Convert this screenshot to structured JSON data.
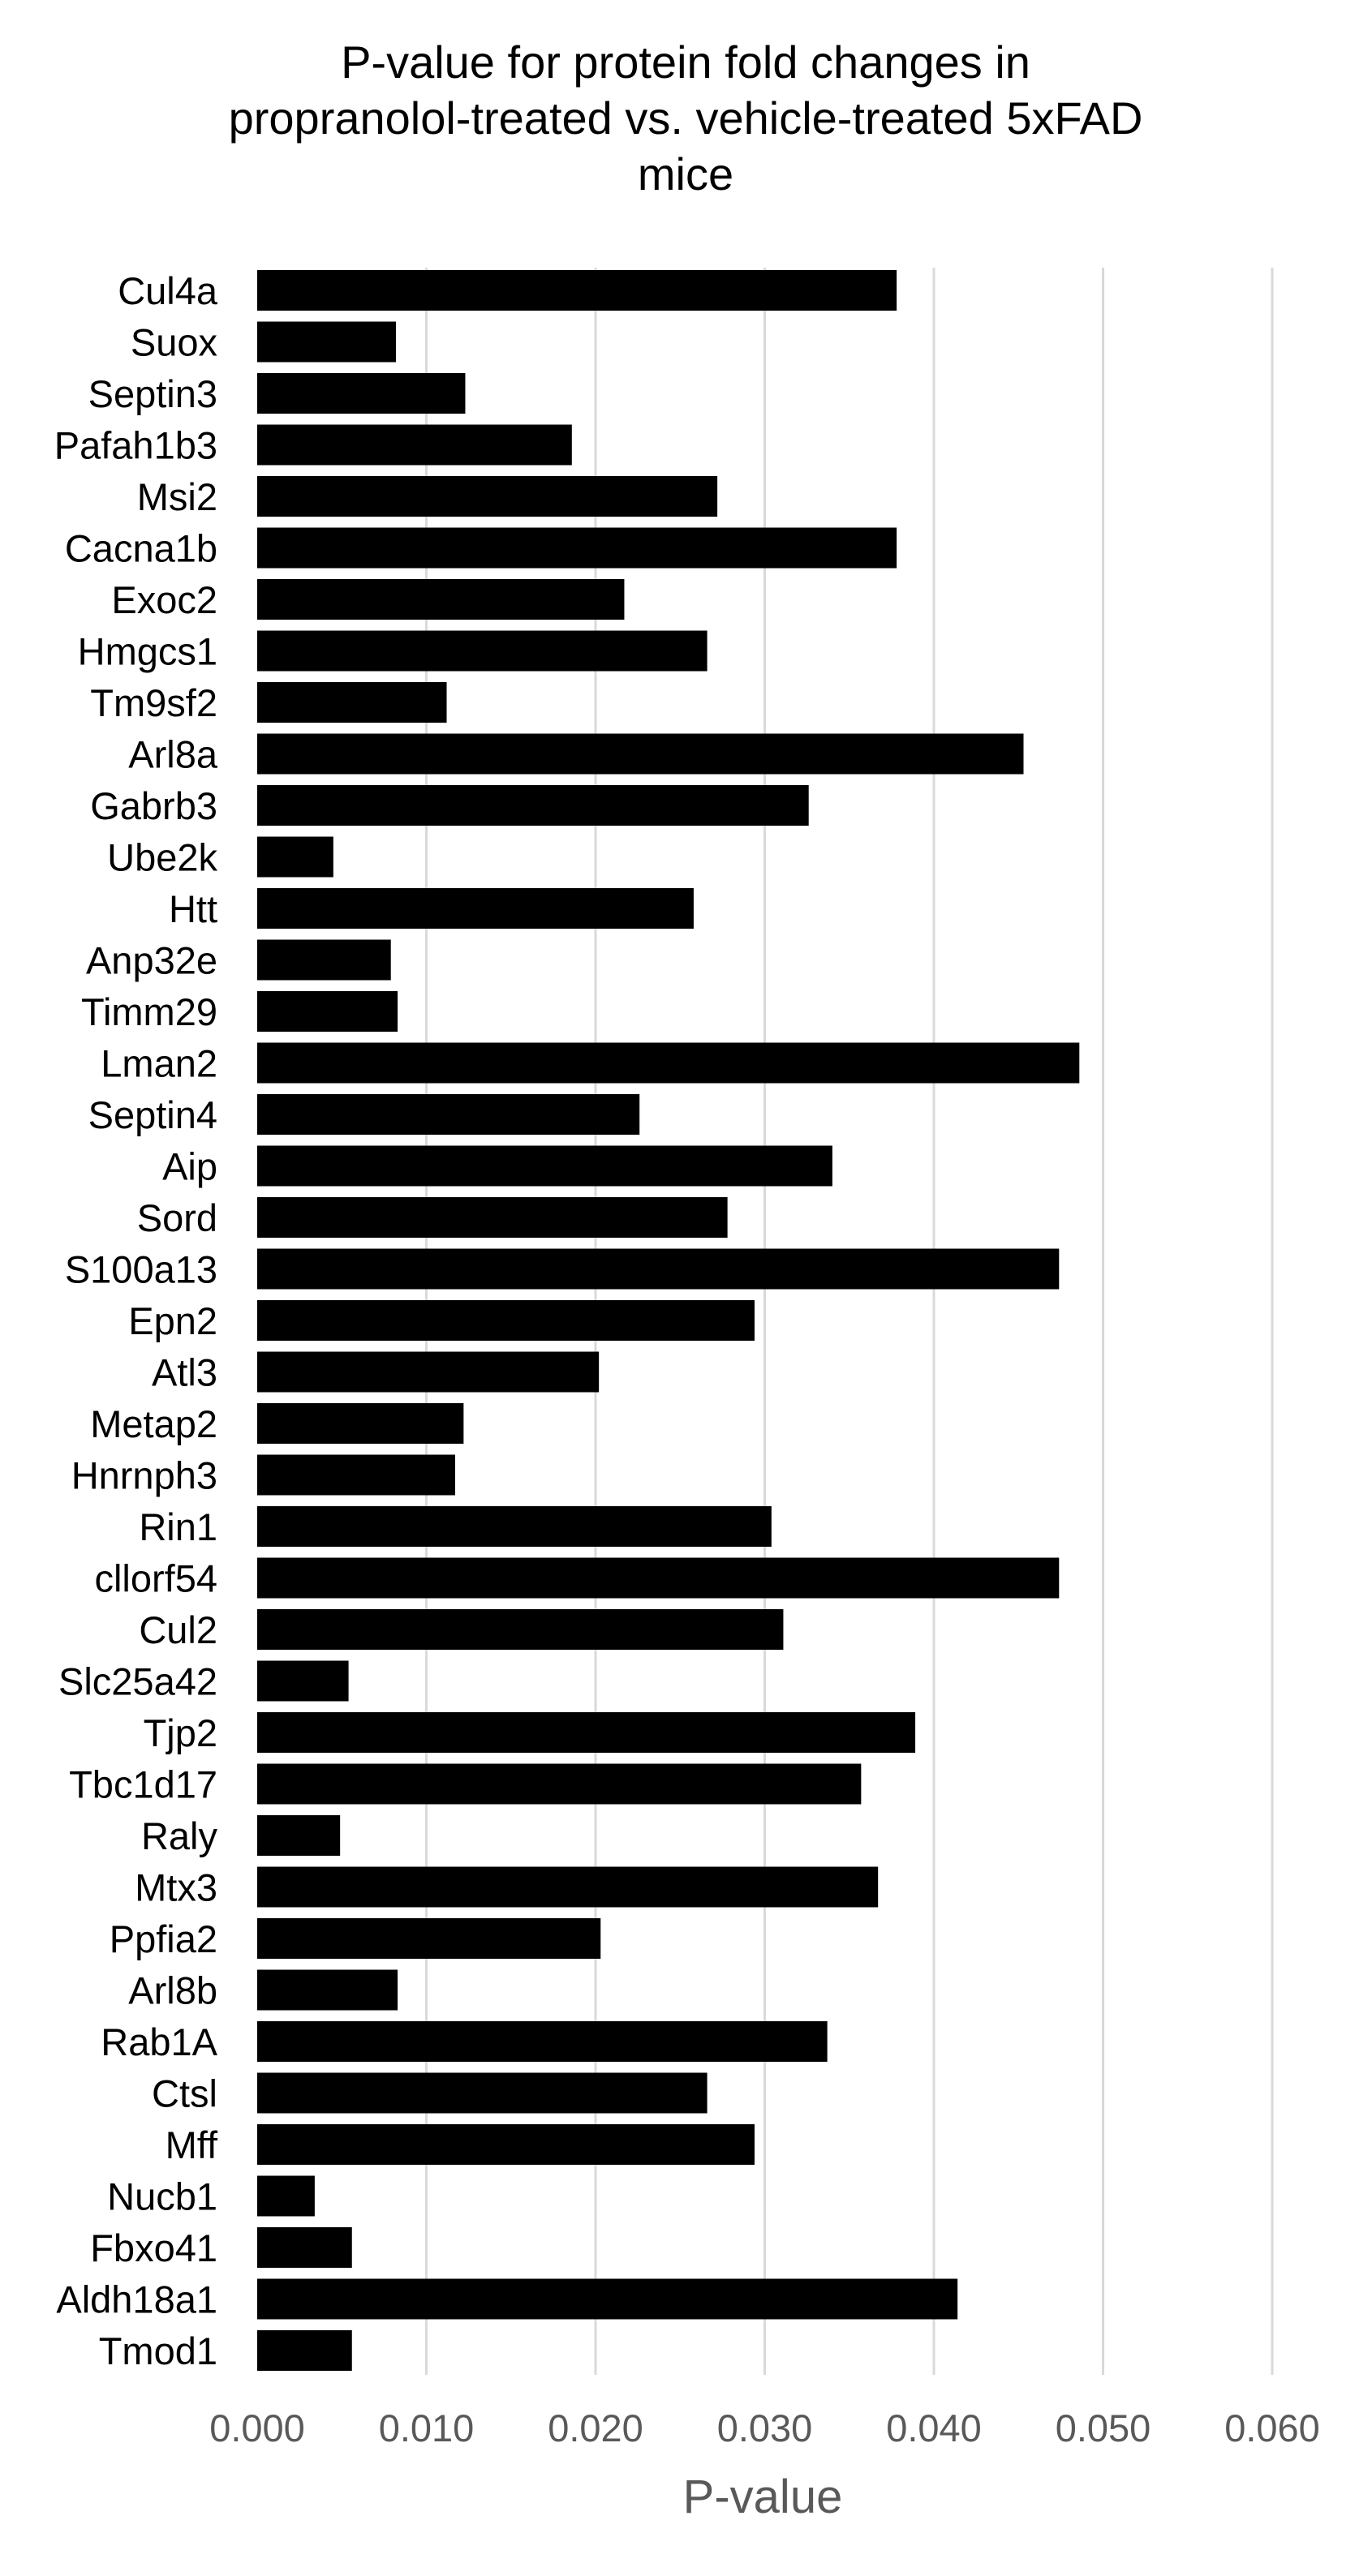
{
  "chart_data": {
    "type": "bar",
    "orientation": "horizontal",
    "title_lines": [
      "P-value for protein fold changes in",
      "propranolol-treated vs. vehicle-treated 5xFAD",
      "mice"
    ],
    "xlabel": "P-value",
    "ylabel": "",
    "xlim": [
      0,
      0.06
    ],
    "xticks": [
      "0.000",
      "0.010",
      "0.020",
      "0.030",
      "0.040",
      "0.050",
      "0.060"
    ],
    "grid": "vertical",
    "legend": "none",
    "bar_color": "#000000",
    "categories": [
      "Cul4a",
      "Suox",
      "Septin3",
      "Pafah1b3",
      "Msi2",
      "Cacna1b",
      "Exoc2",
      "Hmgcs1",
      "Tm9sf2",
      "Arl8a",
      "Gabrb3",
      "Ube2k",
      "Htt",
      "Anp32e",
      "Timm29",
      "Lman2",
      "Septin4",
      "Aip",
      "Sord",
      "S100a13",
      "Epn2",
      "Atl3",
      "Metap2",
      "Hnrnph3",
      "Rin1",
      "cllorf54",
      "Cul2",
      "Slc25a42",
      "Tjp2",
      "Tbc1d17",
      "Raly",
      "Mtx3",
      "Ppfia2",
      "Arl8b",
      "Rab1A",
      "Ctsl",
      "Mff",
      "Nucb1",
      "Fbxo41",
      "Aldh18a1",
      "Tmod1"
    ],
    "values": [
      0.0378,
      0.0082,
      0.0123,
      0.0186,
      0.0272,
      0.0378,
      0.0217,
      0.0266,
      0.0112,
      0.0453,
      0.0326,
      0.0045,
      0.0258,
      0.0079,
      0.0083,
      0.0486,
      0.0226,
      0.034,
      0.0278,
      0.0474,
      0.0294,
      0.0202,
      0.0122,
      0.0117,
      0.0304,
      0.0474,
      0.0311,
      0.0054,
      0.0389,
      0.0357,
      0.0049,
      0.0367,
      0.0203,
      0.0083,
      0.0337,
      0.0266,
      0.0294,
      0.0034,
      0.0056,
      0.0414,
      0.0056
    ]
  }
}
